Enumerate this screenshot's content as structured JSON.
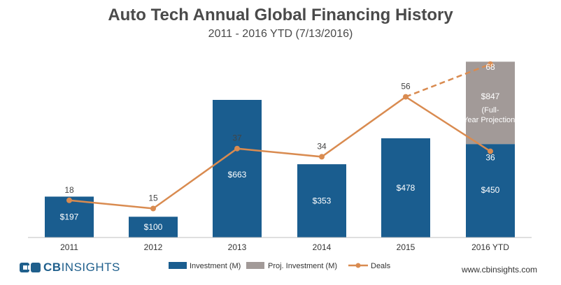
{
  "title": "Auto Tech Annual Global Financing History",
  "subtitle": "2011 - 2016 YTD (7/13/2016)",
  "logo": {
    "brand_bold": "CB",
    "brand_light": "INSIGHTS"
  },
  "website": "www.cbinsights.com",
  "colors": {
    "investment": "#1a5d8f",
    "projected": "#a29a98",
    "deals": "#d98b50",
    "axis_text": "#333333"
  },
  "chart_data": {
    "type": "bar",
    "categories": [
      "2011",
      "2012",
      "2013",
      "2014",
      "2015",
      "2016 YTD"
    ],
    "series": [
      {
        "name": "Investment (M)",
        "kind": "bar",
        "values": [
          197,
          100,
          663,
          353,
          478,
          450
        ],
        "labels": [
          "$197",
          "$100",
          "$663",
          "$353",
          "$478",
          "$450"
        ]
      },
      {
        "name": "Proj. Investment (M)",
        "kind": "stacked-bar",
        "values": [
          null,
          null,
          null,
          null,
          null,
          847
        ],
        "labels": [
          "",
          "",
          "",
          "",
          "",
          "$847"
        ],
        "note": "(Full-Year Projection)"
      },
      {
        "name": "Deals",
        "kind": "line",
        "values": [
          18,
          15,
          37,
          34,
          56,
          36
        ],
        "labels": [
          "18",
          "15",
          "37",
          "34",
          "56",
          "36"
        ],
        "projection": {
          "category": "2016 YTD",
          "value": 68,
          "label": "68",
          "from_category": "2015",
          "style": "dashed"
        }
      }
    ],
    "legend_position": "bottom",
    "gridlines": false
  }
}
